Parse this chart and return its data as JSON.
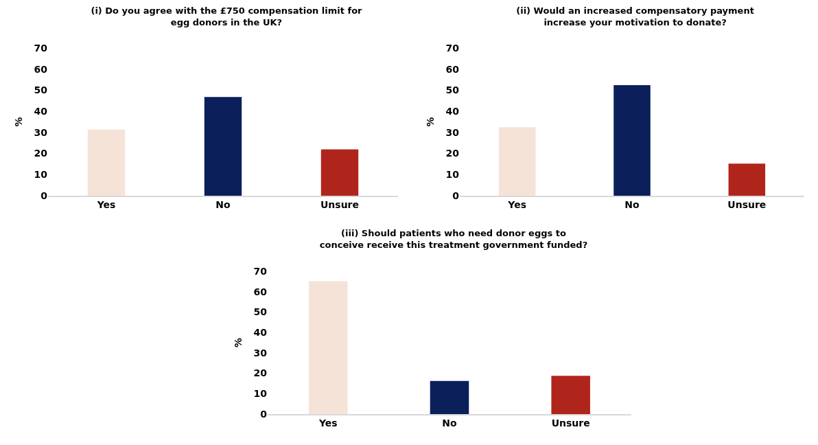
{
  "chart_data": [
    {
      "type": "bar",
      "title": "(i) Do you agree with the £750 compensation limit for egg donors in the UK?",
      "ylabel": "%",
      "categories": [
        "Yes",
        "No",
        "Unsure"
      ],
      "values": [
        31.4,
        46.8,
        22
      ],
      "colors": [
        "#f5e3d7",
        "#0b1f5a",
        "#b0251b"
      ],
      "ylim": [
        0,
        70
      ],
      "yticks": [
        0,
        10,
        20,
        30,
        40,
        50,
        60,
        70
      ],
      "grid": false
    },
    {
      "type": "bar",
      "title": "(ii) Would an increased compensatory payment increase your motivation to donate?",
      "ylabel": "%",
      "categories": [
        "Yes",
        "No",
        "Unsure"
      ],
      "values": [
        32.5,
        52.4,
        15.2
      ],
      "colors": [
        "#f5e3d7",
        "#0b1f5a",
        "#b0251b"
      ],
      "ylim": [
        0,
        70
      ],
      "yticks": [
        0,
        10,
        20,
        30,
        40,
        50,
        60,
        70
      ],
      "grid": false
    },
    {
      "type": "bar",
      "title": "(iii) Should patients who need donor eggs to conceive receive this treatment government funded?",
      "ylabel": "%",
      "categories": [
        "Yes",
        "No",
        "Unsure"
      ],
      "values": [
        65.1,
        16.2,
        18.8
      ],
      "colors": [
        "#f5e3d7",
        "#0b1f5a",
        "#b0251b"
      ],
      "ylim": [
        0,
        70
      ],
      "yticks": [
        0,
        10,
        20,
        30,
        40,
        50,
        60,
        70
      ],
      "grid": false
    }
  ]
}
